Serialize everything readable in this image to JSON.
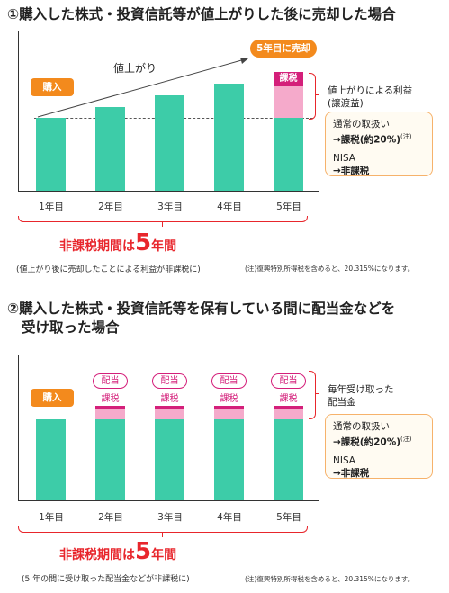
{
  "section1": {
    "title": "①購入した株式・投資信託等が値上がりした後に売却した場合",
    "buy_label": "購入",
    "sell_label": "5年目に売却",
    "rise_label": "値上がり",
    "tax_label": "課税",
    "gain_label_line1": "値上がりによる利益",
    "gain_label_line2": "(譲渡益)",
    "years": [
      "1年目",
      "2年目",
      "3年目",
      "4年目",
      "5年目"
    ],
    "tax_box": {
      "line1": "通常の取扱い",
      "line2": "→課税(約20%)",
      "note": "(注)",
      "line3": "NISA",
      "line4": "→非課税"
    },
    "period_prefix": "非課税期間は",
    "period_number": "5",
    "period_suffix": "年間",
    "caption": "(値上がり後に売却したことによる利益が非課税に)",
    "footnote": "(注)復興特別所得税を含めると、20.315%になります。"
  },
  "section2": {
    "title_line1": "②購入した株式・投資信託等を保有している間に配当金などを",
    "title_line2": "受け取った場合",
    "buy_label": "購入",
    "dividend_label": "配当",
    "tax_label": "課税",
    "received_line1": "毎年受け取った",
    "received_line2": "配当金",
    "years": [
      "1年目",
      "2年目",
      "3年目",
      "4年目",
      "5年目"
    ],
    "tax_box": {
      "line1": "通常の取扱い",
      "line2": "→課税(約20%)",
      "note": "(注)",
      "line3": "NISA",
      "line4": "→非課税"
    },
    "period_prefix": "非課税期間は",
    "period_number": "5",
    "period_suffix": "年間",
    "caption": "(5 年の間に受け取った配当金などが非課税に)",
    "footnote": "(注)復興特別所得税を含めると、20.315%になります。"
  },
  "colors": {
    "bar": "#3dcca8",
    "gain_pink": "#f5aacb",
    "tax_magenta": "#d41f7a",
    "accent_orange": "#f38a1d",
    "period_red": "#e8262c"
  }
}
